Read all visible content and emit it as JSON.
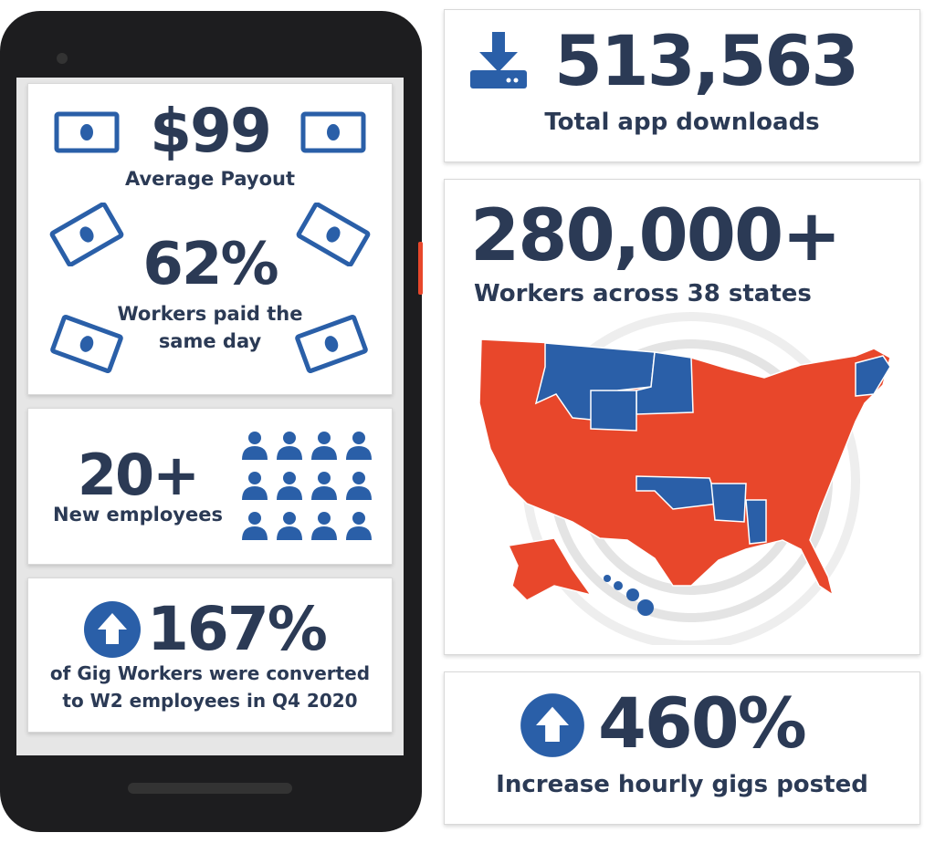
{
  "payout": {
    "value": "$99",
    "label": "Average Payout"
  },
  "same_day": {
    "value": "62%",
    "label_line1": "Workers paid the",
    "label_line2": "same day"
  },
  "employees": {
    "value": "20+",
    "label": "New employees"
  },
  "conversion": {
    "value": "167%",
    "label_line1": "of Gig Workers were converted",
    "label_line2": "to W2 employees in Q4 2020"
  },
  "downloads": {
    "value": "513,563",
    "label": "Total app downloads"
  },
  "workers": {
    "value": "280,000+",
    "label": "Workers across 38 states"
  },
  "gigs": {
    "value": "460%",
    "label": "Increase hourly gigs posted"
  },
  "icons": [
    "money-icon",
    "people-icon",
    "arrow-up-icon",
    "download-icon",
    "us-map"
  ],
  "colors": {
    "navy": "#2b3a55",
    "blue": "#2a5fa8",
    "red": "#e8472b"
  }
}
